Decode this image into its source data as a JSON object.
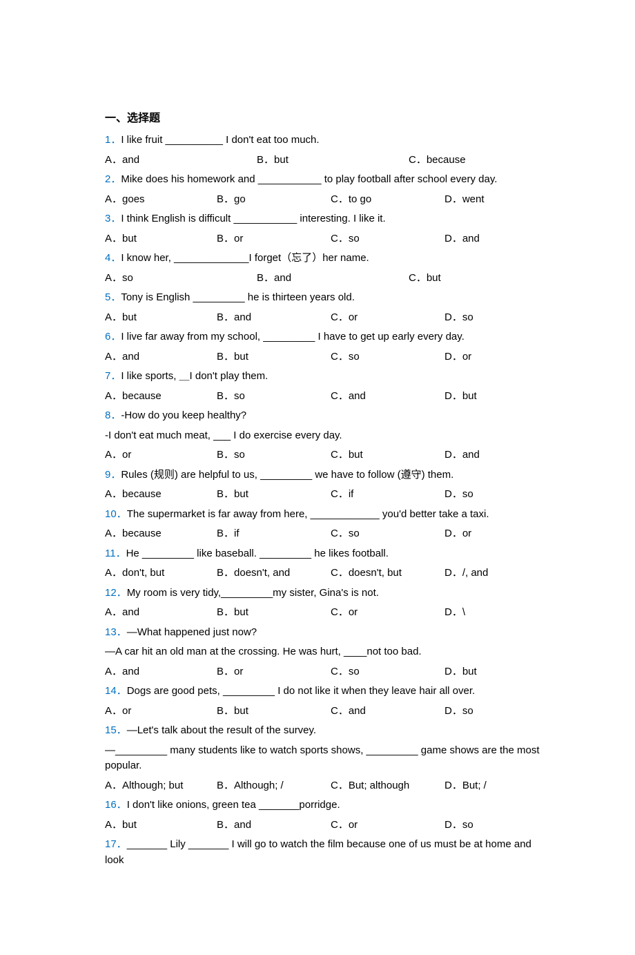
{
  "section_title": "一、选择题",
  "questions": [
    {
      "num": "1．",
      "text": "I like fruit __________ I don't eat too much.",
      "options": [
        "A．and",
        "B．but",
        "C．because"
      ],
      "layout": 3
    },
    {
      "num": "2．",
      "text": "Mike does his homework and ___________ to play football after school every day.",
      "options": [
        "A．goes",
        "B．go",
        "C．to go",
        "D．went"
      ],
      "layout": 4
    },
    {
      "num": "3．",
      "text": "I think English is difficult ___________ interesting.  I like it.",
      "options": [
        "A．but",
        "B．or",
        "C．so",
        "D．and"
      ],
      "layout": 4
    },
    {
      "num": "4．",
      "text": "I know her, _____________I forget（忘了）her name.",
      "options": [
        "A．so",
        "B．and",
        "C．but"
      ],
      "layout": 3
    },
    {
      "num": "5．",
      "text": "Tony is English _________ he is thirteen years old.",
      "options": [
        "A．but",
        "B．and",
        "C．or",
        "D．so"
      ],
      "layout": 4
    },
    {
      "num": "6．",
      "text": "I live far away from my school, _________ I have to get up early every day.",
      "options": [
        "A．and",
        "B．but",
        "C．so",
        "D．or"
      ],
      "layout": 4
    },
    {
      "num": "7．",
      "text": "I like sports, ＿I don't play them.",
      "options": [
        "A．because",
        "B．so",
        "C．and",
        "D．but"
      ],
      "layout": 4
    },
    {
      "num": "8．",
      "text": "-How do you keep healthy?",
      "continuation": "-I don't eat much meat, ___ I do exercise every day.",
      "options": [
        "A．or",
        "B．so",
        "C．but",
        "D．and"
      ],
      "layout": 4
    },
    {
      "num": "9．",
      "text": "Rules (规则) are helpful to us, _________ we have to follow (遵守) them.",
      "options": [
        "A．because",
        "B．but",
        "C．if",
        "D．so"
      ],
      "layout": 4
    },
    {
      "num": "10．",
      "text": "The supermarket is far away from here, ____________ you'd better take a taxi.",
      "options": [
        "A．because",
        "B．if",
        "C．so",
        "D．or"
      ],
      "layout": 4
    },
    {
      "num": "11．",
      "text": "He _________ like baseball. _________ he likes football.",
      "options": [
        "A．don't, but",
        "B．doesn't, and",
        "C．doesn't, but",
        "D．/, and"
      ],
      "layout": 4
    },
    {
      "num": "12．",
      "text": "My room is very tidy,_________my sister, Gina's is not.",
      "options": [
        "A．and",
        "B．but",
        "C．or",
        "D．\\"
      ],
      "layout": 4
    },
    {
      "num": "13．",
      "text": "—What happened just now?",
      "continuation": "—A car hit an old man at the crossing. He was hurt, ____not too bad.",
      "options": [
        "A．and",
        "B．or",
        "C．so",
        "D．but"
      ],
      "layout": 4
    },
    {
      "num": "14．",
      "text": "Dogs are good pets, _________ I do not like it when they leave hair all over.",
      "options": [
        "A．or",
        "B．but",
        "C．and",
        "D．so"
      ],
      "layout": 4
    },
    {
      "num": "15．",
      "text": "—Let's talk about the result of the survey.",
      "continuation": "—_________ many students like to watch sports shows, _________ game shows are the most popular.",
      "options": [
        "A．Although; but",
        "B．Although; /",
        "C．But; although",
        "D．But; /"
      ],
      "layout": 4
    },
    {
      "num": "16．",
      "text": "I don't like onions, green tea _______porridge.",
      "options": [
        "A．but",
        "B．and",
        "C．or",
        "D．so"
      ],
      "layout": 4
    },
    {
      "num": "17．",
      "text": "_______ Lily _______ I will go to watch the film because one of us must be at home and look",
      "options": [],
      "layout": 0
    }
  ],
  "colors": {
    "question_number": "#0070c0",
    "text": "#000000",
    "background": "#ffffff"
  }
}
